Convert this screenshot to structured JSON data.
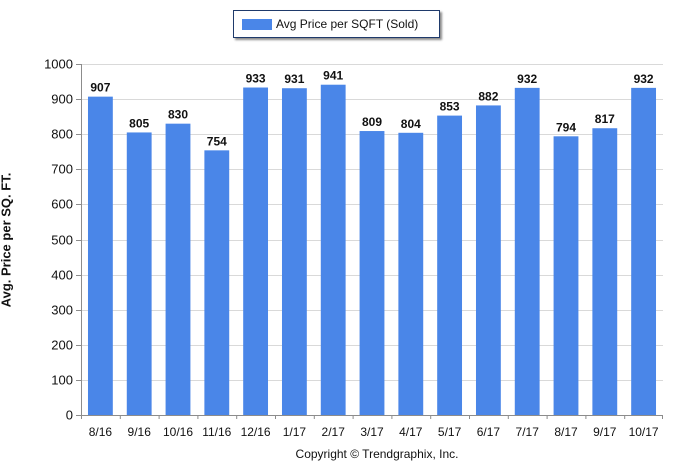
{
  "chart_data": {
    "type": "bar",
    "categories": [
      "8/16",
      "9/16",
      "10/16",
      "11/16",
      "12/16",
      "1/17",
      "2/17",
      "3/17",
      "4/17",
      "5/17",
      "6/17",
      "7/17",
      "8/17",
      "9/17",
      "10/17"
    ],
    "series": [
      {
        "name": "Avg Price per SQFT (Sold)",
        "values": [
          907,
          805,
          830,
          754,
          933,
          931,
          941,
          809,
          804,
          853,
          882,
          932,
          794,
          817,
          932
        ],
        "color": "#4a86e8"
      }
    ],
    "ylabel": "Avg. Price per SQ. FT.",
    "xlabel": "",
    "ylim": [
      0,
      1000
    ],
    "yticks": [
      0,
      100,
      200,
      300,
      400,
      500,
      600,
      700,
      800,
      900,
      1000
    ],
    "grid": true,
    "legend_position": "top-center",
    "data_labels": true
  },
  "footer": {
    "copyright": "Copyright © Trendgraphix, Inc."
  }
}
